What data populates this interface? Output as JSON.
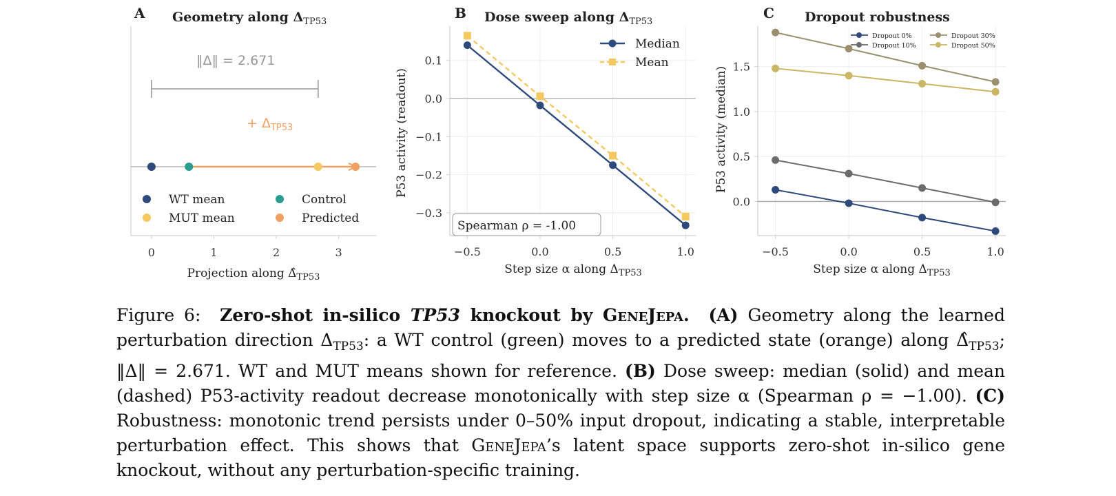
{
  "panels": {
    "a": {
      "letter": "A",
      "title": "Geometry along Δ",
      "title_sub": "TP53",
      "norm_label": "‖Δ‖ = 2.671",
      "arrow_label": "+ Δ",
      "arrow_label_sub": "TP53",
      "xlabel": "Projection along Δ̂",
      "xlabel_sub": "TP53",
      "xticks": [
        "0",
        "1",
        "2",
        "3"
      ],
      "legend": [
        {
          "label": "WT mean",
          "color": "#2e4a7a"
        },
        {
          "label": "Control",
          "color": "#2a9d8f"
        },
        {
          "label": "MUT mean",
          "color": "#f5c95f"
        },
        {
          "label": "Predicted",
          "color": "#f0a060"
        }
      ]
    },
    "b": {
      "letter": "B",
      "title": "Dose sweep along Δ",
      "title_sub": "TP53",
      "xlabel": "Step size α along Δ",
      "xlabel_sub": "TP53",
      "ylabel": "P53 activity (readout)",
      "annotation": "Spearman ρ = -1.00"
    },
    "c": {
      "letter": "C",
      "title": "Dropout robustness",
      "xlabel": "Step size α along Δ",
      "xlabel_sub": "TP53",
      "ylabel": "P53 activity (median)"
    }
  },
  "chart_data": [
    {
      "type": "scatter",
      "points": [
        {
          "name": "WT mean",
          "x": 0.0,
          "color": "#2e4a7a"
        },
        {
          "name": "Control",
          "x": 0.6,
          "color": "#2a9d8f"
        },
        {
          "name": "MUT mean",
          "x": 2.67,
          "color": "#f5c95f"
        },
        {
          "name": "Predicted",
          "x": 3.27,
          "color": "#f0a060"
        }
      ],
      "norm_bracket": [
        0.0,
        2.671
      ],
      "arrow": {
        "from": 0.6,
        "to": 3.27
      },
      "xlim": [
        -0.33,
        3.6
      ],
      "xticks": [
        0,
        1,
        2,
        3
      ]
    },
    {
      "type": "line",
      "x": [
        -0.5,
        0.0,
        0.5,
        1.0
      ],
      "xticks": [
        "−0.5",
        "0.0",
        "0.5",
        "1.0"
      ],
      "yticks": [
        "0.1",
        "0.0",
        "−0.1",
        "−0.2",
        "−0.3"
      ],
      "ytick_values": [
        0.1,
        0.0,
        -0.1,
        -0.2,
        -0.3
      ],
      "xlim": [
        -0.62,
        1.07
      ],
      "ylim": [
        -0.36,
        0.19
      ],
      "series": [
        {
          "name": "Median",
          "values": [
            0.14,
            -0.018,
            -0.175,
            -0.333
          ],
          "color": "#2e4a7a",
          "marker": "circle",
          "dash": false
        },
        {
          "name": "Mean",
          "values": [
            0.165,
            0.006,
            -0.15,
            -0.31
          ],
          "color": "#f5c95f",
          "marker": "square",
          "dash": true
        }
      ]
    },
    {
      "type": "line",
      "x": [
        -0.5,
        0.0,
        0.5,
        1.0
      ],
      "xticks": [
        "−0.5",
        "0.0",
        "0.5",
        "1.0"
      ],
      "yticks": [
        "0.0",
        "0.5",
        "1.0",
        "1.5"
      ],
      "ytick_values": [
        0.0,
        0.5,
        1.0,
        1.5
      ],
      "xlim": [
        -0.62,
        1.07
      ],
      "ylim": [
        -0.38,
        1.95
      ],
      "series": [
        {
          "name": "Dropout 0%",
          "values": [
            0.13,
            -0.02,
            -0.18,
            -0.33
          ],
          "color": "#2e4a7a"
        },
        {
          "name": "Dropout 10%",
          "values": [
            0.46,
            0.31,
            0.15,
            -0.01
          ],
          "color": "#6b6b6b"
        },
        {
          "name": "Dropout 30%",
          "values": [
            1.88,
            1.7,
            1.51,
            1.33
          ],
          "color": "#9a8f6e"
        },
        {
          "name": "Dropout 50%",
          "values": [
            1.48,
            1.4,
            1.31,
            1.22
          ],
          "color": "#c9b765"
        }
      ]
    }
  ],
  "caption": {
    "figure_num": "Figure 6:",
    "title_1": "Zero-shot in-silico",
    "title_gene": "TP53",
    "title_2": "knockout by",
    "model": "GeneJepa.",
    "a_tag": "(A)",
    "a_text_1": "Geometry along the learned perturbation direction Δ",
    "a_text_1_sub": "TP53",
    "a_text_2": ": a WT control (green) moves to a predicted state (orange) along Δ̂",
    "a_text_2_sub": "TP53",
    "a_text_3": "; ‖Δ‖ = 2.671. WT and MUT means shown for reference.",
    "b_tag": "(B)",
    "b_text": "Dose sweep: median (solid) and mean (dashed) P53-activity readout decrease monotonically with step size α (Spearman ρ = −1.00).",
    "c_tag": "(C)",
    "c_text": "Robustness: monotonic trend persists under 0–50% input dropout, indicating a stable, interpretable perturbation effect.  This shows that",
    "model2": "GeneJepa",
    "end_text": "’s latent space supports zero-shot in-silico gene knockout, without any perturbation-specific training."
  }
}
